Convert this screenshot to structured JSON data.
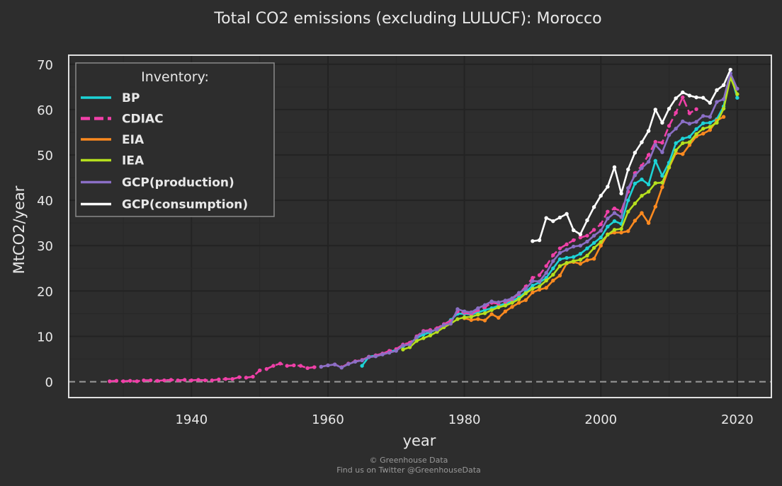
{
  "chart_data": {
    "type": "line",
    "title": "Total CO2 emissions (excluding LULUCF): Morocco",
    "xlabel": "year",
    "ylabel": "MtCO2/year",
    "xlim": [
      1922,
      2025
    ],
    "ylim": [
      -3.5,
      72
    ],
    "xticks": [
      1940,
      1960,
      1980,
      2000,
      2020
    ],
    "yticks": [
      0,
      10,
      20,
      30,
      40,
      50,
      60,
      70
    ],
    "grid": true,
    "zero_line": true,
    "legend": {
      "title": "Inventory:",
      "position": "top-left"
    },
    "series": [
      {
        "name": "BP",
        "color": "#1dd3d6",
        "dashed": false,
        "x": [
          1965,
          1966,
          1967,
          1968,
          1969,
          1970,
          1971,
          1972,
          1973,
          1974,
          1975,
          1976,
          1977,
          1978,
          1979,
          1980,
          1981,
          1982,
          1983,
          1984,
          1985,
          1986,
          1987,
          1988,
          1989,
          1990,
          1991,
          1992,
          1993,
          1994,
          1995,
          1996,
          1997,
          1998,
          1999,
          2000,
          2001,
          2002,
          2003,
          2004,
          2005,
          2006,
          2007,
          2008,
          2009,
          2010,
          2011,
          2012,
          2013,
          2014,
          2015,
          2016,
          2017,
          2018,
          2019,
          2020
        ],
        "y": [
          3.5,
          5.5,
          5.8,
          6.2,
          6.6,
          7.0,
          7.8,
          8.5,
          9.6,
          10.4,
          10.9,
          11.6,
          12.6,
          13.6,
          15.0,
          15.0,
          14.8,
          15.3,
          15.8,
          16.2,
          16.8,
          17.2,
          17.8,
          18.6,
          19.8,
          21.2,
          21.9,
          22.9,
          25.0,
          27.0,
          27.3,
          27.5,
          28.2,
          29.4,
          30.6,
          31.8,
          34.2,
          35.4,
          34.8,
          40.0,
          43.7,
          44.6,
          43.5,
          48.7,
          45.4,
          48.3,
          52.6,
          53.6,
          54.0,
          55.7,
          57.0,
          57.1,
          57.9,
          60.7,
          68.0,
          62.6
        ]
      },
      {
        "name": "CDIAC",
        "color": "#f040a8",
        "dashed": true,
        "x": [
          1928,
          1929,
          1930,
          1931,
          1932,
          1933,
          1934,
          1935,
          1936,
          1937,
          1938,
          1939,
          1940,
          1941,
          1942,
          1943,
          1944,
          1945,
          1946,
          1947,
          1948,
          1949,
          1950,
          1951,
          1952,
          1953,
          1954,
          1955,
          1956,
          1957,
          1958,
          1959,
          1960,
          1961,
          1962,
          1963,
          1964,
          1965,
          1966,
          1967,
          1968,
          1969,
          1970,
          1971,
          1972,
          1973,
          1974,
          1975,
          1976,
          1977,
          1978,
          1979,
          1980,
          1981,
          1982,
          1983,
          1984,
          1985,
          1986,
          1987,
          1988,
          1989,
          1990,
          1991,
          1992,
          1993,
          1994,
          1995,
          1996,
          1997,
          1998,
          1999,
          2000,
          2001,
          2002,
          2003,
          2004,
          2005,
          2006,
          2007,
          2008,
          2009,
          2010,
          2011,
          2012,
          2013,
          2014
        ],
        "y": [
          0.1,
          0.2,
          0.1,
          0.2,
          0.1,
          0.3,
          0.3,
          0.2,
          0.3,
          0.4,
          0.3,
          0.4,
          0.3,
          0.4,
          0.3,
          0.3,
          0.5,
          0.6,
          0.6,
          1.0,
          0.9,
          1.1,
          2.5,
          2.8,
          3.5,
          4.0,
          3.5,
          3.6,
          3.5,
          3.0,
          3.2,
          3.3,
          3.6,
          3.8,
          3.2,
          4.0,
          4.5,
          4.8,
          5.5,
          5.8,
          6.2,
          6.8,
          7.2,
          8.2,
          8.6,
          10.0,
          11.2,
          11.4,
          11.8,
          12.7,
          13.4,
          15.5,
          15.2,
          14.9,
          15.8,
          16.4,
          17.4,
          17.2,
          17.6,
          18.2,
          19.4,
          21.0,
          22.9,
          23.5,
          25.5,
          27.9,
          29.4,
          30.3,
          31.2,
          31.8,
          32.2,
          33.5,
          34.7,
          37.5,
          38.2,
          37.6,
          41.9,
          46.0,
          47.6,
          50.0,
          52.9,
          52.7,
          56.4,
          59.3,
          62.7,
          59.2,
          60.1
        ]
      },
      {
        "name": "EIA",
        "color": "#ff8a1f",
        "dashed": false,
        "x": [
          1980,
          1981,
          1982,
          1983,
          1984,
          1985,
          1986,
          1987,
          1988,
          1989,
          1990,
          1991,
          1992,
          1993,
          1994,
          1995,
          1996,
          1997,
          1998,
          1999,
          2000,
          2001,
          2002,
          2003,
          2004,
          2005,
          2006,
          2007,
          2008,
          2009,
          2010,
          2011,
          2012,
          2013,
          2014,
          2015,
          2016,
          2017,
          2018
        ],
        "y": [
          14.0,
          13.6,
          13.8,
          13.5,
          14.9,
          14.1,
          15.5,
          16.5,
          17.4,
          18.0,
          19.7,
          20.3,
          20.7,
          22.3,
          23.4,
          26.1,
          26.4,
          26.0,
          26.8,
          27.1,
          30.0,
          32.5,
          32.9,
          32.9,
          33.2,
          35.5,
          37.2,
          35.0,
          38.6,
          42.9,
          47.2,
          50.4,
          50.2,
          52.2,
          54.1,
          54.7,
          55.5,
          57.6,
          58.4
        ]
      },
      {
        "name": "IEA",
        "color": "#b6e01e",
        "dashed": false,
        "x": [
          1971,
          1972,
          1973,
          1974,
          1975,
          1976,
          1977,
          1978,
          1979,
          1980,
          1981,
          1982,
          1983,
          1984,
          1985,
          1986,
          1987,
          1988,
          1989,
          1990,
          1991,
          1992,
          1993,
          1994,
          1995,
          1996,
          1997,
          1998,
          1999,
          2000,
          2001,
          2002,
          2003,
          2004,
          2005,
          2006,
          2007,
          2008,
          2009,
          2010,
          2011,
          2012,
          2013,
          2014,
          2015,
          2016,
          2017,
          2018,
          2019,
          2020
        ],
        "y": [
          7.1,
          7.6,
          9.0,
          9.6,
          10.2,
          11.0,
          12.0,
          12.8,
          13.8,
          14.2,
          14.3,
          14.8,
          15.1,
          15.8,
          16.4,
          16.8,
          17.4,
          18.2,
          19.5,
          20.5,
          21.0,
          22.3,
          23.6,
          25.5,
          26.2,
          26.6,
          26.9,
          27.8,
          29.5,
          30.8,
          32.4,
          33.5,
          33.7,
          37.5,
          39.3,
          41.0,
          41.9,
          43.8,
          43.9,
          47.3,
          51.0,
          52.6,
          52.8,
          54.6,
          55.8,
          56.2,
          57.1,
          60.2,
          67.1,
          63.4
        ]
      },
      {
        "name": "GCP(production)",
        "color": "#8b6fc6",
        "dashed": false,
        "x": [
          1959,
          1960,
          1961,
          1962,
          1963,
          1964,
          1965,
          1966,
          1967,
          1968,
          1969,
          1970,
          1971,
          1972,
          1973,
          1974,
          1975,
          1976,
          1977,
          1978,
          1979,
          1980,
          1981,
          1982,
          1983,
          1984,
          1985,
          1986,
          1987,
          1988,
          1989,
          1990,
          1991,
          1992,
          1993,
          1994,
          1995,
          1996,
          1997,
          1998,
          1999,
          2000,
          2001,
          2002,
          2003,
          2004,
          2005,
          2006,
          2007,
          2008,
          2009,
          2010,
          2011,
          2012,
          2013,
          2014,
          2015,
          2016,
          2017,
          2018,
          2019,
          2020
        ],
        "y": [
          3.3,
          3.6,
          3.8,
          3.1,
          3.9,
          4.4,
          4.7,
          5.4,
          5.6,
          6.0,
          6.4,
          6.8,
          8.0,
          8.2,
          9.8,
          11.0,
          11.1,
          11.5,
          12.5,
          12.8,
          16.0,
          15.5,
          15.3,
          16.2,
          16.9,
          17.7,
          17.5,
          17.9,
          18.4,
          19.6,
          20.5,
          22.2,
          22.1,
          24.0,
          26.6,
          28.4,
          29.1,
          29.8,
          30.0,
          30.9,
          32.2,
          33.3,
          36.0,
          37.2,
          36.3,
          42.7,
          45.5,
          47.1,
          48.5,
          52.2,
          50.6,
          54.4,
          55.8,
          57.4,
          56.9,
          57.3,
          58.6,
          58.4,
          61.7,
          62.3,
          68.0,
          64.6
        ]
      },
      {
        "name": "GCP(consumption)",
        "color": "#ffffff",
        "dashed": false,
        "x": [
          1990,
          1991,
          1992,
          1993,
          1994,
          1995,
          1996,
          1997,
          1998,
          1999,
          2000,
          2001,
          2002,
          2003,
          2004,
          2005,
          2006,
          2007,
          2008,
          2009,
          2010,
          2011,
          2012,
          2013,
          2014,
          2015,
          2016,
          2017,
          2018,
          2019
        ],
        "y": [
          31.0,
          31.2,
          36.1,
          35.4,
          36.2,
          37.0,
          33.4,
          32.5,
          35.6,
          38.5,
          41.0,
          43.0,
          47.3,
          41.5,
          46.8,
          50.5,
          52.8,
          55.3,
          60.0,
          57.1,
          60.2,
          62.5,
          63.8,
          63.1,
          62.7,
          62.6,
          61.5,
          64.3,
          65.4,
          68.8
        ]
      }
    ]
  },
  "credits": {
    "line1": "© Greenhouse Data",
    "line2": "Find us on Twitter @GreenhouseData"
  }
}
